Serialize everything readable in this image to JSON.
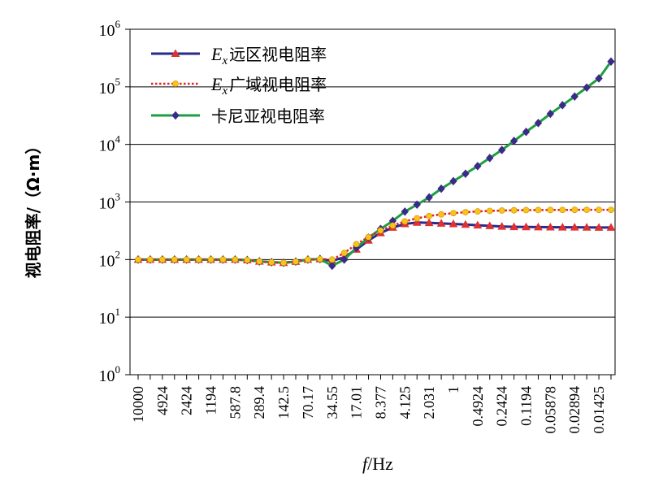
{
  "chart_data": {
    "type": "line",
    "title": "",
    "xlabel": "f/Hz",
    "ylabel": "视电阻率/（Ω·m）",
    "y_scale": "log",
    "ylim": [
      1,
      1000000
    ],
    "y_ticks": [
      {
        "base": "10",
        "exp": "0"
      },
      {
        "base": "10",
        "exp": "1"
      },
      {
        "base": "10",
        "exp": "2"
      },
      {
        "base": "10",
        "exp": "3"
      },
      {
        "base": "10",
        "exp": "4"
      },
      {
        "base": "10",
        "exp": "5"
      },
      {
        "base": "10",
        "exp": "6"
      }
    ],
    "grid": true,
    "legend_position": "top-left",
    "x_tick_labels": [
      "10000",
      "4924",
      "2424",
      "1194",
      "587.8",
      "289.4",
      "142.5",
      "70.17",
      "34.55",
      "17.01",
      "8.377",
      "4.125",
      "2.031",
      "1",
      "0.4924",
      "0.2424",
      "0.1194",
      "0.05878",
      "0.02894",
      "0.01425"
    ],
    "x": [
      10000,
      7017,
      4924,
      3455,
      2424,
      1701,
      1194,
      837.7,
      587.8,
      412.5,
      289.4,
      203.1,
      142.5,
      100,
      70.17,
      49.24,
      34.55,
      24.24,
      17.01,
      11.94,
      8.377,
      5.878,
      4.125,
      2.894,
      2.031,
      1.425,
      1,
      0.7017,
      0.4924,
      0.3455,
      0.2424,
      0.1701,
      0.1194,
      0.08377,
      0.05878,
      0.04125,
      0.02894,
      0.02031,
      0.01425,
      0.01
    ],
    "series": [
      {
        "name_italic": "E",
        "name_sub": "x",
        "name_rest": "远区视电阻率",
        "color": "#2a2a8c",
        "marker": "triangle",
        "marker_color": "#e03030",
        "line_style": "solid",
        "values": [
          100,
          100,
          100,
          100,
          100,
          100,
          100,
          100,
          100,
          98,
          93,
          90,
          88,
          92,
          100,
          102,
          95,
          110,
          150,
          215,
          290,
          360,
          415,
          440,
          435,
          425,
          415,
          405,
          395,
          385,
          375,
          370,
          368,
          366,
          365,
          364,
          363,
          362,
          361,
          360
        ]
      },
      {
        "name_italic": "E",
        "name_sub": "x",
        "name_rest": "广域视电阻率",
        "color": "#e02020",
        "marker": "circle",
        "marker_color": "#f5c518",
        "line_style": "dotted",
        "values": [
          100,
          100,
          100,
          100,
          100,
          100,
          100,
          100,
          100,
          98,
          93,
          90,
          88,
          92,
          100,
          102,
          100,
          130,
          185,
          245,
          320,
          390,
          460,
          520,
          570,
          610,
          640,
          665,
          685,
          700,
          710,
          718,
          722,
          725,
          727,
          729,
          730,
          731,
          732,
          732
        ]
      },
      {
        "name_italic": "",
        "name_sub": "",
        "name_rest": "卡尼亚视电阻率",
        "color": "#1f9e3f",
        "marker": "diamond",
        "marker_color": "#3a2a8a",
        "line_style": "solid",
        "values": [
          100,
          100,
          100,
          100,
          100,
          100,
          100,
          100,
          100,
          98,
          93,
          90,
          88,
          92,
          100,
          102,
          78,
          100,
          160,
          240,
          340,
          470,
          680,
          900,
          1200,
          1700,
          2300,
          3100,
          4200,
          5800,
          8000,
          11500,
          16500,
          23500,
          34000,
          48000,
          68000,
          97000,
          140000,
          275000
        ]
      }
    ]
  }
}
